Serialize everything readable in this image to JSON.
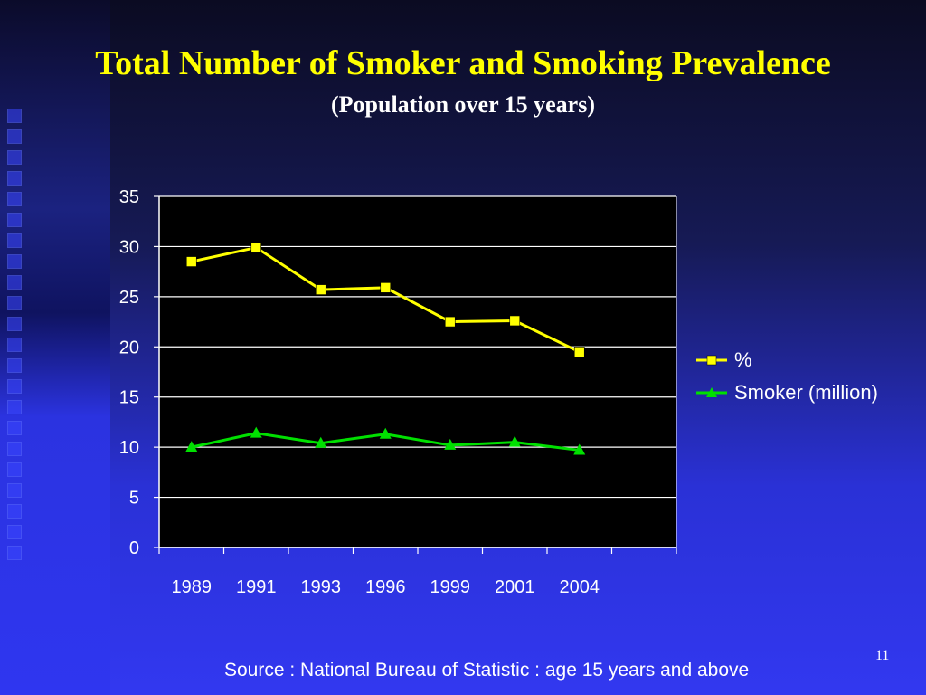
{
  "slide": {
    "title": "Total Number  of Smoker and Smoking Prevalence",
    "subtitle": "(Population over 15 years)",
    "source": "Source : National Bureau of Statistic : age 15 years and above",
    "page_number": "11"
  },
  "chart_data": {
    "type": "line",
    "categories": [
      "1989",
      "1991",
      "1993",
      "1996",
      "1999",
      "2001",
      "2004"
    ],
    "ylim": [
      0,
      35
    ],
    "yticks": [
      0,
      5,
      10,
      15,
      20,
      25,
      30,
      35
    ],
    "grid": true,
    "legend_position": "right",
    "series": [
      {
        "name": "%",
        "values": [
          28.5,
          29.9,
          25.7,
          25.9,
          22.5,
          22.6,
          19.5
        ],
        "color": "#ffff00",
        "marker": "square"
      },
      {
        "name": "Smoker (million)",
        "values": [
          10.0,
          11.4,
          10.4,
          11.3,
          10.2,
          10.5,
          9.7
        ],
        "color": "#00e000",
        "marker": "triangle"
      }
    ],
    "plot_background": "#000000",
    "grid_color": "#ffffff"
  }
}
